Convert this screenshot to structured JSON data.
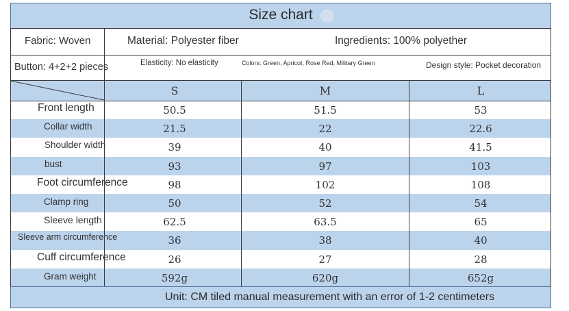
{
  "title": "Size chart",
  "info": {
    "fabric": "Fabric: Woven",
    "material": "Material: Polyester fiber",
    "ingredients": "Ingredients: 100% polyether",
    "button": "Button: 4+2+2 pieces",
    "elasticity": "Elasticity: No elasticity",
    "colors": "Colors: Green, Apricot, Rose Red, Military Green",
    "design": "Design style: Pocket decoration"
  },
  "sizes": [
    "S",
    "M",
    "L"
  ],
  "rows": [
    {
      "label": "Front length",
      "values": [
        "50.5",
        "51.5",
        "53"
      ]
    },
    {
      "label": "Collar width",
      "values": [
        "21.5",
        "22",
        "22.6"
      ]
    },
    {
      "label": "Shoulder width",
      "values": [
        "39",
        "40",
        "41.5"
      ]
    },
    {
      "label": "bust",
      "values": [
        "93",
        "97",
        "103"
      ]
    },
    {
      "label": "Foot circumference",
      "values": [
        "98",
        "102",
        "108"
      ]
    },
    {
      "label": "Clamp ring",
      "values": [
        "50",
        "52",
        "54"
      ]
    },
    {
      "label": "Sleeve length",
      "values": [
        "62.5",
        "63.5",
        "65"
      ]
    },
    {
      "label": "Sleeve arm circumference",
      "values": [
        "36",
        "38",
        "40"
      ]
    },
    {
      "label": "Cuff circumference",
      "values": [
        "26",
        "27",
        "28"
      ]
    },
    {
      "label": "Gram weight",
      "values": [
        "592g",
        "620g",
        "652g"
      ]
    }
  ],
  "footer": "Unit: CM tiled manual measurement with an error of 1-2 centimeters",
  "colors": {
    "band": "#bcd3ec",
    "border": "#4d6f95",
    "grid": "#3a3a3a"
  }
}
